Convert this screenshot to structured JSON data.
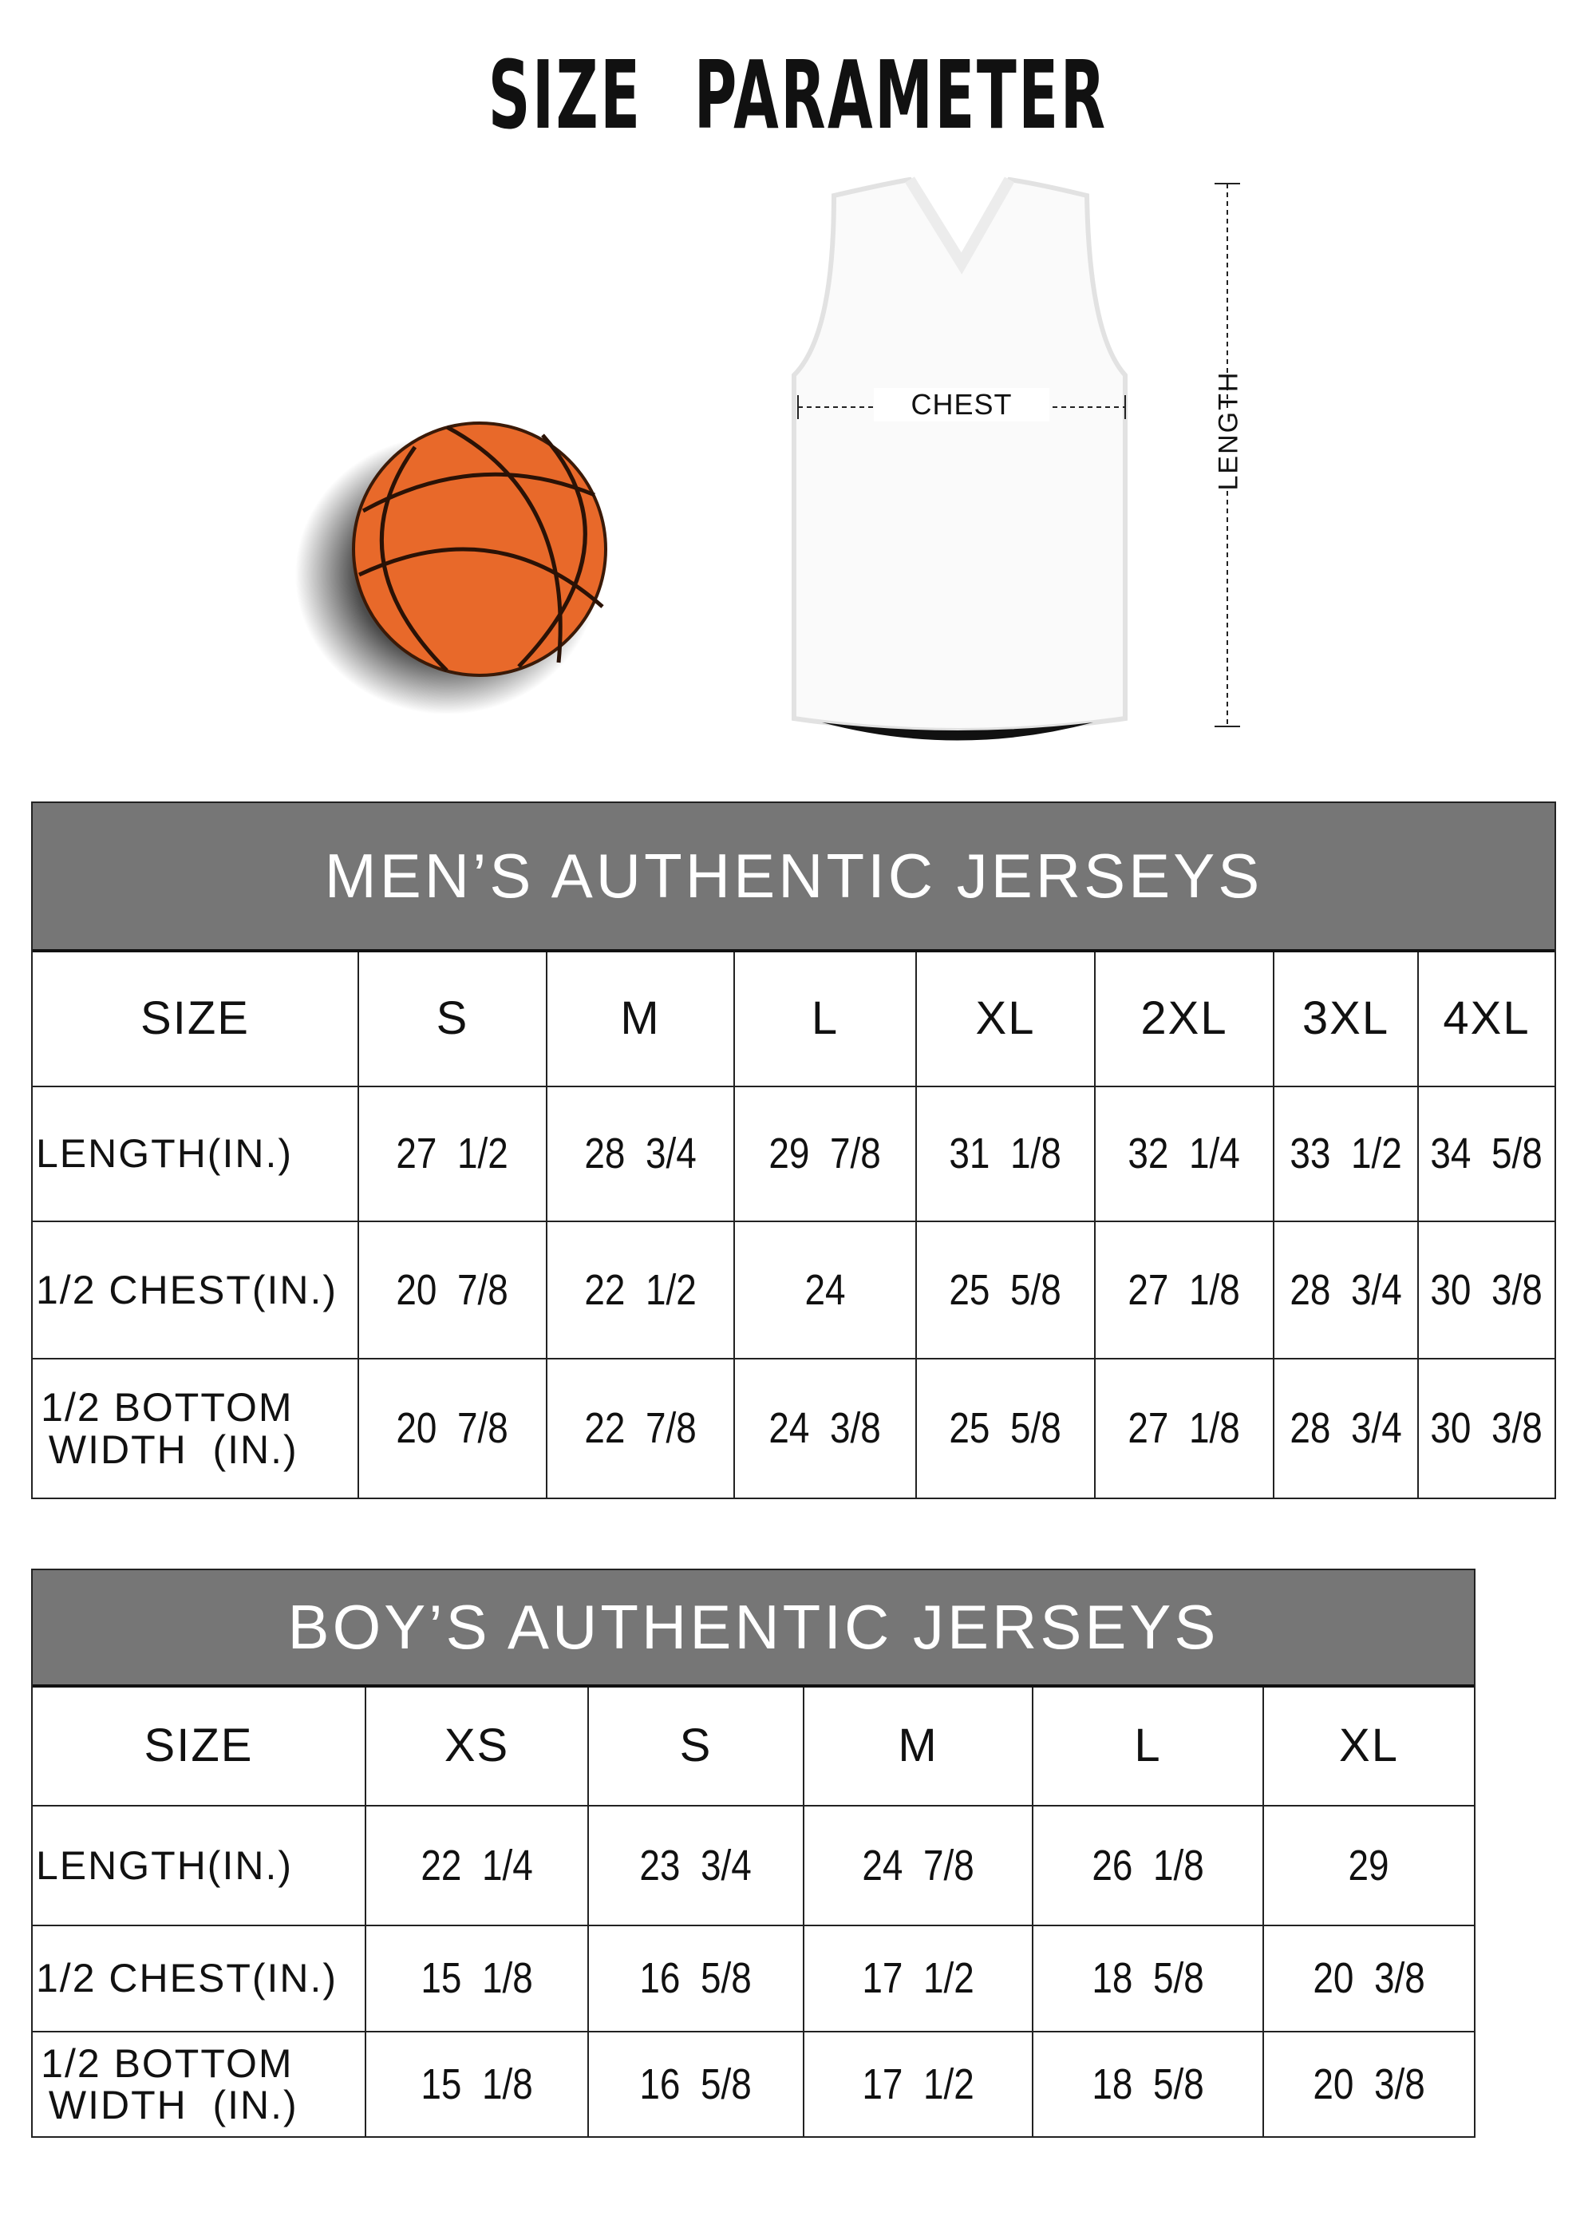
{
  "title": "SIZE PARAMETER",
  "diagram": {
    "chest_label": "CHEST",
    "length_label": "LENGTH",
    "ball_color": "#E8692A",
    "icons": [
      "basketball-icon",
      "jersey-icon"
    ]
  },
  "colors": {
    "header_bg": "#767676",
    "header_text": "#FFFFFF",
    "border": "#222222"
  },
  "men": {
    "title": "MEN’S AUTHENTIC JERSEYS",
    "columns": [
      "SIZE",
      "S",
      "M",
      "L",
      "XL",
      "2XL",
      "3XL",
      "4XL"
    ],
    "rows": [
      [
        "LENGTH(IN.)",
        "27  1/2",
        "28  3/4",
        "29  7/8",
        "31  1/8",
        "32  1/4",
        "33  1/2",
        "34  5/8"
      ],
      [
        "1/2 CHEST(IN.)",
        "20  7/8",
        "22  1/2",
        "24",
        "25  5/8",
        "27  1/8",
        "28  3/4",
        "30  3/8"
      ],
      [
        "1/2 BOTTOM\n WIDTH  (IN.)",
        "20  7/8",
        "22  7/8",
        "24  3/8",
        "25  5/8",
        "27  1/8",
        "28  3/4",
        "30  3/8"
      ]
    ]
  },
  "boys": {
    "title": "BOY’S AUTHENTIC JERSEYS",
    "columns": [
      "SIZE",
      "XS",
      "S",
      "M",
      "L",
      "XL"
    ],
    "rows": [
      [
        "LENGTH(IN.)",
        "22  1/4",
        "23  3/4",
        "24  7/8",
        "26  1/8",
        "29"
      ],
      [
        "1/2 CHEST(IN.)",
        "15  1/8",
        "16  5/8",
        "17  1/2",
        "18  5/8",
        "20  3/8"
      ],
      [
        "1/2 BOTTOM\n WIDTH  (IN.)",
        "15  1/8",
        "16  5/8",
        "17  1/2",
        "18  5/8",
        "20  3/8"
      ]
    ]
  }
}
